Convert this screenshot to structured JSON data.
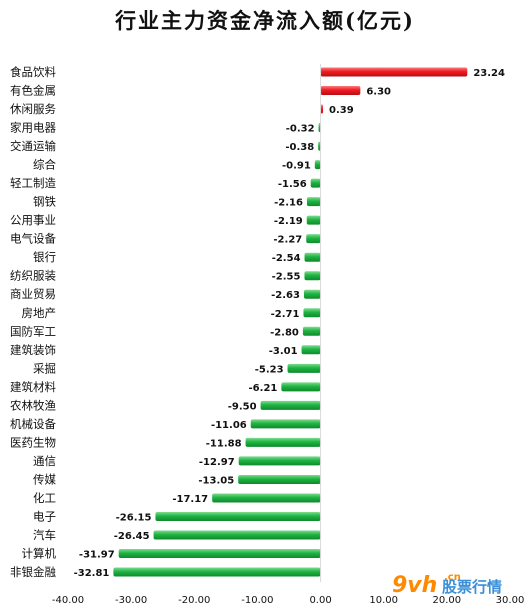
{
  "chart_data": {
    "type": "bar",
    "orientation": "horizontal",
    "title": "行业主力资金净流入额(亿元)",
    "categories": [
      "食品饮料",
      "有色金属",
      "休闲服务",
      "家用电器",
      "交通运输",
      "综合",
      "轻工制造",
      "钢铁",
      "公用事业",
      "电气设备",
      "银行",
      "纺织服装",
      "商业贸易",
      "房地产",
      "国防军工",
      "建筑装饰",
      "采掘",
      "建筑材料",
      "农林牧渔",
      "机械设备",
      "医药生物",
      "通信",
      "传媒",
      "化工",
      "电子",
      "汽车",
      "计算机",
      "非银金融"
    ],
    "values": [
      23.24,
      6.3,
      0.39,
      -0.32,
      -0.38,
      -0.91,
      -1.56,
      -2.16,
      -2.19,
      -2.27,
      -2.54,
      -2.55,
      -2.63,
      -2.71,
      -2.8,
      -3.01,
      -5.23,
      -6.21,
      -9.5,
      -11.06,
      -11.88,
      -12.97,
      -13.05,
      -17.17,
      -26.15,
      -26.45,
      -31.97,
      -32.81
    ],
    "value_labels": [
      "23.24",
      "6.30",
      "0.39",
      "-0.32",
      "-0.38",
      "-0.91",
      "-1.56",
      "-2.16",
      "-2.19",
      "-2.27",
      "-2.54",
      "-2.55",
      "-2.63",
      "-2.71",
      "-2.80",
      "-3.01",
      "-5.23",
      "-6.21",
      "-9.50",
      "-11.06",
      "-11.88",
      "-12.97",
      "-13.05",
      "-17.17",
      "-26.15",
      "-26.45",
      "-31.97",
      "-32.81"
    ],
    "xlim": [
      -40,
      30
    ],
    "xticks": [
      "-40.00",
      "-30.00",
      "-20.00",
      "-10.00",
      "0.00",
      "10.00",
      "20.00",
      "30.00"
    ],
    "xtick_values": [
      -40,
      -30,
      -20,
      -10,
      0,
      10,
      20,
      30
    ],
    "grid": false,
    "legend": "none",
    "colors": {
      "positive": "#e8141b",
      "negative": "#18a93b"
    }
  },
  "watermark": {
    "brand": "9vh",
    "site": "股票行情",
    "domain": ".cn"
  }
}
